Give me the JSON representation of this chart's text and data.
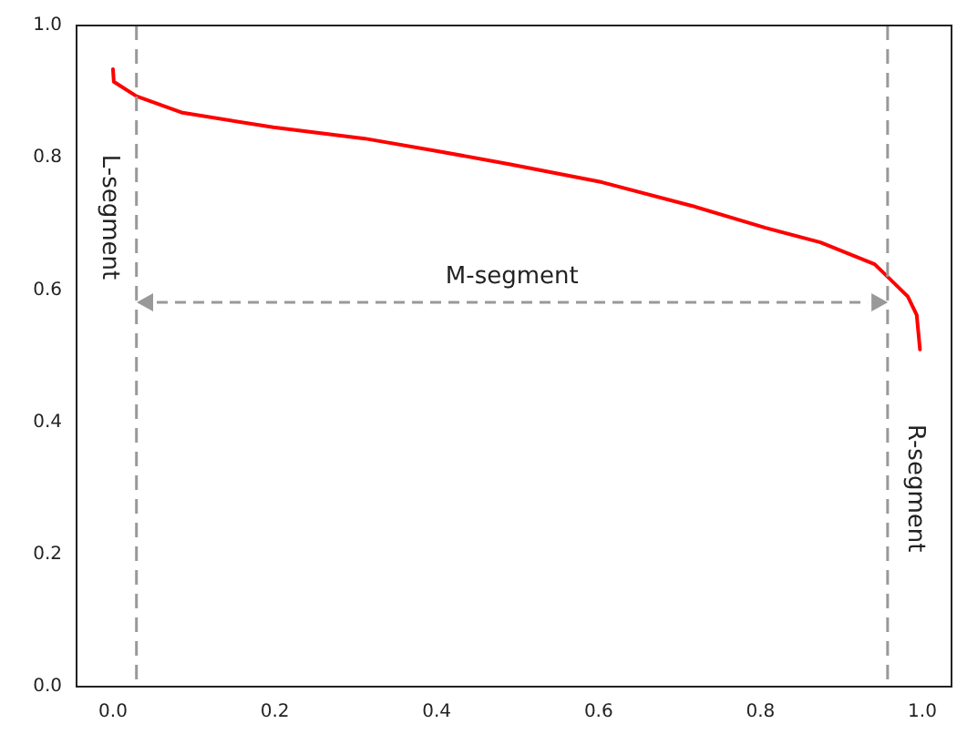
{
  "chart_data": {
    "type": "line",
    "x": [
      0.0,
      0.001,
      0.029,
      0.086,
      0.198,
      0.311,
      0.401,
      0.491,
      0.604,
      0.716,
      0.806,
      0.874,
      0.941,
      0.957,
      0.982,
      0.993,
      0.997
    ],
    "series": [
      {
        "color": "#ff0000",
        "values": [
          0.934,
          0.915,
          0.893,
          0.868,
          0.846,
          0.829,
          0.81,
          0.79,
          0.763,
          0.727,
          0.694,
          0.672,
          0.639,
          0.62,
          0.59,
          0.562,
          0.51
        ]
      }
    ],
    "xlim": [
      -0.045,
      1.036
    ],
    "xticks": [
      {
        "value": 0,
        "label": "0.0"
      },
      0.2,
      0.4,
      0.6,
      0.8,
      {
        "value": 1,
        "label": "1.0"
      }
    ],
    "ylim": [
      0,
      1
    ],
    "yticks": [
      {
        "value": 0,
        "label": "0.0"
      },
      0.2,
      0.4,
      0.6,
      0.8,
      {
        "value": 1,
        "label": "1.0"
      }
    ],
    "ref_lines": [
      {
        "axis": "x",
        "value": 0.029,
        "label": "L-segment",
        "color": "#999999",
        "line_style": "dashed"
      },
      {
        "axis": "x",
        "value": 0.957,
        "label": "R-segment",
        "color": "#999999",
        "line_style": "dashed"
      }
    ],
    "annotations": [
      "M-segment"
    ],
    "grid": false,
    "legend": false,
    "marker": "none",
    "line_style": "solid"
  }
}
